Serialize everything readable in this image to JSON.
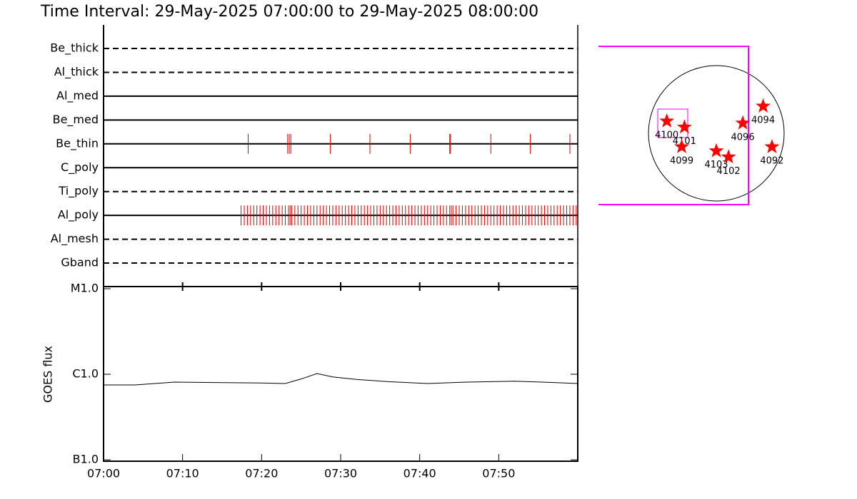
{
  "title": "Time Interval: 29-May-2025 07:00:00 to 29-May-2025 08:00:00",
  "chart_data": [
    {
      "type": "timeline",
      "xlim": [
        0,
        60
      ],
      "color": "#e00000",
      "filters": [
        {
          "name": "Be_thick",
          "style": "dashed",
          "times": []
        },
        {
          "name": "Al_thick",
          "style": "dashed",
          "times": []
        },
        {
          "name": "Al_med",
          "style": "solid",
          "times": []
        },
        {
          "name": "Be_med",
          "style": "solid",
          "times": []
        },
        {
          "name": "Be_thin",
          "style": "solid",
          "times": [
            18.3,
            23.3,
            23.5,
            23.7,
            28.7,
            33.7,
            38.8,
            43.8,
            43.9,
            49,
            54,
            59
          ]
        },
        {
          "name": "C_poly",
          "style": "solid",
          "times": []
        },
        {
          "name": "Ti_poly",
          "style": "dashed",
          "times": []
        },
        {
          "name": "Al_poly",
          "style": "solid",
          "times": [
            17.4,
            17.8,
            18.2,
            18.6,
            19,
            19.4,
            19.8,
            20.2,
            20.6,
            21,
            21.4,
            21.8,
            22.2,
            22.6,
            23,
            23.4,
            23.6,
            23.8,
            24.2,
            24.6,
            25,
            25.4,
            25.8,
            26.2,
            26.6,
            27,
            27.4,
            27.8,
            28.2,
            28.6,
            29,
            29.4,
            29.8,
            30.2,
            30.6,
            31,
            31.4,
            31.8,
            32.2,
            32.6,
            33,
            33.4,
            33.8,
            34.2,
            34.6,
            35,
            35.4,
            35.8,
            36.2,
            36.6,
            37,
            37.4,
            37.8,
            38.2,
            38.6,
            39,
            39.4,
            39.8,
            40.2,
            40.6,
            41,
            41.4,
            41.8,
            42.2,
            42.6,
            43,
            43.4,
            43.8,
            44,
            44.2,
            44.6,
            45,
            45.4,
            45.8,
            46.2,
            46.6,
            47,
            47.4,
            47.8,
            48.2,
            48.6,
            49,
            49.4,
            49.8,
            50.2,
            50.6,
            51,
            51.4,
            51.8,
            52.2,
            52.6,
            53,
            53.4,
            53.8,
            54.2,
            54.6,
            55,
            55.4,
            55.8,
            56.2,
            56.6,
            57,
            57.4,
            57.8,
            58.2,
            58.6,
            59,
            59.4,
            59.8
          ]
        },
        {
          "name": "Al_mesh",
          "style": "dashed",
          "times": []
        },
        {
          "name": "Gband",
          "style": "dashed",
          "times": []
        }
      ]
    },
    {
      "type": "line",
      "ylabel": "GOES flux",
      "log": true,
      "color": "#000000",
      "ylim": [
        1e-07,
        1e-05
      ],
      "yticks": [
        {
          "value": 1e-07,
          "label": "B1.0"
        },
        {
          "value": 1e-06,
          "label": "C1.0"
        },
        {
          "value": 1e-05,
          "label": "M1.0"
        }
      ],
      "xlim": [
        0,
        60
      ],
      "xticks": [
        {
          "value": 0,
          "label": "07:00"
        },
        {
          "value": 10,
          "label": "07:10"
        },
        {
          "value": 20,
          "label": "07:20"
        },
        {
          "value": 30,
          "label": "07:30"
        },
        {
          "value": 40,
          "label": "07:40"
        },
        {
          "value": 50,
          "label": "07:50"
        }
      ],
      "x": [
        0,
        4,
        9,
        14,
        20,
        23,
        25,
        27,
        29,
        32,
        36,
        41,
        46,
        52,
        57,
        60
      ],
      "values": [
        7.5e-07,
        7.5e-07,
        8.1e-07,
        8e-07,
        7.9e-07,
        7.8e-07,
        8.8e-07,
        1.02e-06,
        9.3e-07,
        8.7e-07,
        8.2e-07,
        7.8e-07,
        8.1e-07,
        8.3e-07,
        8e-07,
        7.8e-07
      ]
    },
    {
      "type": "map",
      "color": "#ff0000",
      "regions": [
        {
          "label": "4100",
          "x": -0.73,
          "y": 0.18
        },
        {
          "label": "4101",
          "x": -0.47,
          "y": 0.09
        },
        {
          "label": "4099",
          "x": -0.51,
          "y": -0.2
        },
        {
          "label": "4103",
          "x": 0,
          "y": -0.26
        },
        {
          "label": "4102",
          "x": 0.18,
          "y": -0.35
        },
        {
          "label": "4096",
          "x": 0.39,
          "y": 0.15
        },
        {
          "label": "4094",
          "x": 0.69,
          "y": 0.4
        },
        {
          "label": "4092",
          "x": 0.82,
          "y": -0.2
        }
      ]
    }
  ]
}
